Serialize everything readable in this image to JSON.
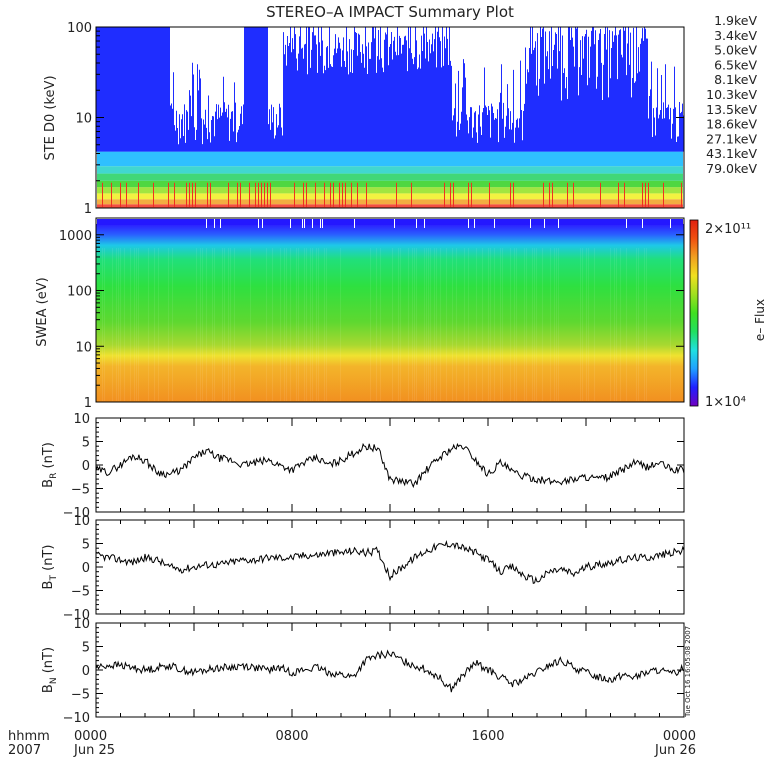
{
  "chart_data": [
    {
      "type": "line",
      "panel": "ste",
      "title": "STEREO–A IMPACT Summary Plot",
      "ylabel": "STE D0 (keV)",
      "ylim": [
        1,
        100
      ],
      "yscale": "log",
      "yticks": [
        "1",
        "10",
        "100"
      ],
      "legend_placement": "right",
      "series": [
        {
          "name": "1.9keV",
          "color": "#9b30d0",
          "level": 50
        },
        {
          "name": "3.4keV",
          "color": "#3a2bd0",
          "level": 35
        },
        {
          "name": "5.0keV",
          "color": "#1a55f0",
          "level": 4.5
        },
        {
          "name": "6.5keV",
          "color": "#1aa0f0",
          "level": 3.5
        },
        {
          "name": "8.1keV",
          "color": "#20d0c8",
          "level": 2.9
        },
        {
          "name": "10.3keV",
          "color": "#20d060",
          "level": 2.4
        },
        {
          "name": "13.5keV",
          "color": "#30d020",
          "level": 2.0
        },
        {
          "name": "18.6keV",
          "color": "#90e020",
          "level": 1.7
        },
        {
          "name": "27.1keV",
          "color": "#f0f020",
          "level": 1.45
        },
        {
          "name": "43.1keV",
          "color": "#f0a020",
          "level": 1.25
        },
        {
          "name": "79.0keV",
          "color": "#f03020",
          "level": 1.1
        }
      ]
    },
    {
      "type": "heatmap",
      "panel": "swea",
      "ylabel": "SWEA (eV)",
      "ylim": [
        1,
        2000
      ],
      "yscale": "log",
      "yticks": [
        "1",
        "10",
        "100",
        "1000"
      ],
      "colorbar": {
        "label": "e– Flux",
        "max_label": "2×10¹¹",
        "min_label": "1×10⁴",
        "stops": [
          "#7000c0",
          "#2020ff",
          "#20a0ff",
          "#20e0e0",
          "#20e060",
          "#40e020",
          "#a0e020",
          "#f0e020",
          "#f0a020",
          "#f05010",
          "#e02010"
        ]
      }
    },
    {
      "type": "line",
      "panel": "br",
      "ylabel_main": "B",
      "ylabel_sub": "R",
      "ylabel_unit": " (nT)",
      "ylim": [
        -10,
        10
      ],
      "yticks": [
        "10",
        "5",
        "0",
        "−5",
        "−10"
      ],
      "x": [
        0,
        0.5,
        1,
        1.5,
        2,
        2.5,
        3,
        3.5,
        4,
        4.5,
        5,
        5.5,
        6,
        6.5,
        7,
        7.5,
        8,
        8.5,
        9,
        9.5,
        10,
        10.5,
        11,
        11.5,
        12,
        12.5,
        13,
        13.5,
        14,
        14.5,
        15,
        15.5,
        16,
        16.5,
        17,
        17.5,
        18,
        18.5,
        19,
        19.5,
        20,
        20.5,
        21,
        21.5,
        22,
        22.5,
        23,
        23.5,
        24
      ],
      "values": [
        -1,
        -1.5,
        0,
        2,
        1,
        -1.5,
        -2,
        -1,
        1.5,
        3,
        1.5,
        1,
        0,
        0.5,
        1,
        0,
        -1,
        0.5,
        1.5,
        0,
        1,
        2.5,
        4,
        3.5,
        -3,
        -3.5,
        -4,
        -1,
        1.5,
        3.5,
        4,
        1,
        -2,
        0.5,
        -1.5,
        -2.5,
        -3,
        -3.5,
        -3.5,
        -3,
        -2.5,
        -3,
        -2.5,
        -1,
        0.5,
        -0.5,
        0.5,
        -1,
        -1
      ]
    },
    {
      "type": "line",
      "panel": "bt",
      "ylabel_main": "B",
      "ylabel_sub": "T",
      "ylabel_unit": " (nT)",
      "ylim": [
        -10,
        10
      ],
      "yticks": [
        "10",
        "5",
        "0",
        "−5",
        "−10"
      ],
      "x": [
        0,
        0.5,
        1,
        1.5,
        2,
        2.5,
        3,
        3.5,
        4,
        4.5,
        5,
        5.5,
        6,
        6.5,
        7,
        7.5,
        8,
        8.5,
        9,
        9.5,
        10,
        10.5,
        11,
        11.5,
        12,
        12.5,
        13,
        13.5,
        14,
        14.5,
        15,
        15.5,
        16,
        16.5,
        17,
        17.5,
        18,
        18.5,
        19,
        19.5,
        20,
        20.5,
        21,
        21.5,
        22,
        22.5,
        23,
        23.5,
        24
      ],
      "values": [
        2.5,
        2,
        1.5,
        1,
        2,
        1.5,
        0,
        -0.5,
        0,
        0.5,
        0.5,
        1,
        1.5,
        1.5,
        2,
        2,
        2,
        2.5,
        2.5,
        3,
        3,
        3.5,
        3,
        3.5,
        -2,
        0,
        2,
        3.5,
        4.5,
        5,
        4,
        3,
        1.5,
        -1,
        0,
        -2,
        -3,
        -1,
        -0.5,
        -1.5,
        0,
        0.5,
        1,
        1.5,
        2,
        2,
        2.5,
        3,
        3.5
      ]
    },
    {
      "type": "line",
      "panel": "bn",
      "ylabel_main": "B",
      "ylabel_sub": "N",
      "ylabel_unit": " (nT)",
      "ylim": [
        -10,
        10
      ],
      "yticks": [
        "10",
        "5",
        "0",
        "−5",
        "−10"
      ],
      "xlabel": "hhmm",
      "year": "2007",
      "xticks": [
        {
          "x": 0,
          "time": "0000",
          "date": "Jun 25"
        },
        {
          "x": 8,
          "time": "0800",
          "date": ""
        },
        {
          "x": 16,
          "time": "1600",
          "date": ""
        },
        {
          "x": 24,
          "time": "0000",
          "date": "Jun 26"
        }
      ],
      "stamp": "Tue Oct 16 16:05:08 2007",
      "x": [
        0,
        0.5,
        1,
        1.5,
        2,
        2.5,
        3,
        3.5,
        4,
        4.5,
        5,
        5.5,
        6,
        6.5,
        7,
        7.5,
        8,
        8.5,
        9,
        9.5,
        10,
        10.5,
        11,
        11.5,
        12,
        12.5,
        13,
        13.5,
        14,
        14.5,
        15,
        15.5,
        16,
        16.5,
        17,
        17.5,
        18,
        18.5,
        19,
        19.5,
        20,
        20.5,
        21,
        21.5,
        22,
        22.5,
        23,
        23.5,
        24
      ],
      "values": [
        0.5,
        1,
        1,
        0.5,
        0,
        0.5,
        1,
        0,
        -0.5,
        0,
        0.5,
        0.5,
        1,
        0.5,
        0,
        0.5,
        -0.5,
        0,
        0.5,
        -0.5,
        -1,
        -1.5,
        2,
        3,
        3.5,
        2,
        1,
        0,
        -1.5,
        -4,
        -1,
        1.5,
        0,
        -1.5,
        -3,
        -2,
        -0.5,
        1,
        2,
        0.5,
        -0.5,
        -1.5,
        -2,
        -1,
        -1.5,
        -0.5,
        0,
        -1,
        0.5
      ]
    }
  ]
}
